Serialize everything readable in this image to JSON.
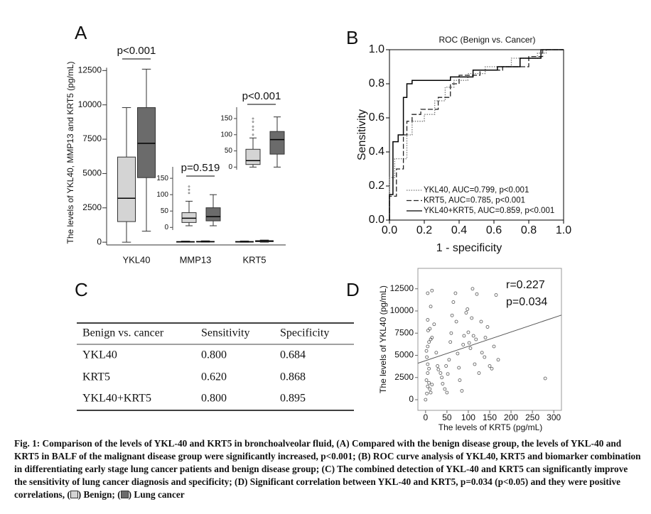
{
  "panels": [
    "A",
    "B",
    "C",
    "D"
  ],
  "chart_data": [
    {
      "type": "box",
      "ylabel": "The levels of YKL40, MMP13 and KRT5 (pg/mL)",
      "categories": [
        "YKL40",
        "MMP13",
        "KRT5"
      ],
      "ylim": [
        -200,
        13500
      ],
      "yticks": [
        0,
        2500,
        5000,
        7500,
        10000,
        12500
      ],
      "annotations": [
        "p<0.001",
        "p=0.519",
        "p<0.001"
      ],
      "series": [
        {
          "color": "#d4d4d4",
          "min": [
            0,
            5,
            0
          ],
          "q1": [
            1500,
            15,
            8
          ],
          "median": [
            3200,
            28,
            20
          ],
          "q3": [
            6200,
            45,
            55
          ],
          "max": [
            9800,
            80,
            90
          ],
          "outliers": [
            [],
            [
              105,
              115,
              125
            ],
            [
              100,
              115,
              125,
              140,
              150
            ]
          ]
        },
        {
          "color": "#6b6b6b",
          "min": [
            800,
            5,
            0
          ],
          "q1": [
            4700,
            20,
            40
          ],
          "median": [
            7200,
            33,
            85
          ],
          "q3": [
            9800,
            60,
            110
          ],
          "max": [
            12600,
            100,
            155
          ],
          "outliers": [
            [],
            [],
            []
          ]
        }
      ],
      "insets": [
        {
          "ylim": [
            -8,
            185
          ],
          "yticks": [
            0,
            50,
            100,
            150
          ]
        },
        {
          "ylim": [
            -8,
            185
          ],
          "yticks": [
            0,
            50,
            100,
            150
          ]
        }
      ]
    },
    {
      "type": "line",
      "title": "ROC (Benign vs. Cancer)",
      "xlabel": "1 - specificity",
      "ylabel": "Sensitivity",
      "xlim": [
        0,
        1
      ],
      "ylim": [
        0,
        1
      ],
      "xticks": [
        {
          "value": 0,
          "label": "0.0"
        },
        {
          "value": 0.2,
          "label": "0.2"
        },
        {
          "value": 0.4,
          "label": "0.4"
        },
        {
          "value": 0.6,
          "label": "0.6"
        },
        {
          "value": 0.8,
          "label": "0.8"
        },
        {
          "value": 1,
          "label": "1.0"
        }
      ],
      "yticks": [
        {
          "value": 0,
          "label": "0.0"
        },
        {
          "value": 0.2,
          "label": "0.2"
        },
        {
          "value": 0.4,
          "label": "0.4"
        },
        {
          "value": 0.6,
          "label": "0.6"
        },
        {
          "value": 0.8,
          "label": "0.8"
        },
        {
          "value": 1,
          "label": "1.0"
        }
      ],
      "legend": "lower right",
      "series": [
        {
          "name": "YKL40, AUC=0.799, p<0.001",
          "color": "#777777",
          "style": "dotted",
          "x": [
            0,
            0,
            0.03,
            0.03,
            0.1,
            0.1,
            0.13,
            0.13,
            0.2,
            0.2,
            0.26,
            0.26,
            0.32,
            0.32,
            0.37,
            0.37,
            0.45,
            0.45,
            0.55,
            0.55,
            0.7,
            0.7,
            0.85,
            0.85,
            0.9,
            0.9,
            1.0
          ],
          "y": [
            0,
            0.25,
            0.25,
            0.36,
            0.36,
            0.5,
            0.5,
            0.58,
            0.58,
            0.62,
            0.62,
            0.7,
            0.7,
            0.78,
            0.78,
            0.82,
            0.82,
            0.86,
            0.86,
            0.9,
            0.9,
            0.95,
            0.95,
            0.98,
            0.98,
            1.0,
            1.0
          ]
        },
        {
          "name": "KRT5, AUC=0.785, p<0.001",
          "color": "#222222",
          "style": "dashed",
          "x": [
            0,
            0,
            0.04,
            0.04,
            0.08,
            0.08,
            0.1,
            0.1,
            0.13,
            0.13,
            0.18,
            0.18,
            0.28,
            0.28,
            0.35,
            0.35,
            0.4,
            0.4,
            0.52,
            0.52,
            0.65,
            0.65,
            0.8,
            0.8,
            0.88,
            0.88,
            1.0
          ],
          "y": [
            0,
            0.14,
            0.14,
            0.3,
            0.3,
            0.5,
            0.5,
            0.58,
            0.58,
            0.62,
            0.62,
            0.65,
            0.65,
            0.72,
            0.72,
            0.8,
            0.8,
            0.85,
            0.85,
            0.88,
            0.88,
            0.9,
            0.9,
            0.96,
            0.96,
            1.0,
            1.0
          ]
        },
        {
          "name": "YKL40+KRT5, AUC=0.859, p<0.001",
          "color": "#000000",
          "style": "solid",
          "x": [
            0,
            0,
            0.02,
            0.02,
            0.05,
            0.05,
            0.08,
            0.08,
            0.1,
            0.1,
            0.13,
            0.13,
            0.35,
            0.35,
            0.48,
            0.48,
            0.62,
            0.62,
            0.75,
            0.75,
            0.87,
            0.87,
            1.0
          ],
          "y": [
            0,
            0.15,
            0.15,
            0.46,
            0.46,
            0.5,
            0.5,
            0.72,
            0.72,
            0.8,
            0.8,
            0.82,
            0.82,
            0.84,
            0.84,
            0.88,
            0.88,
            0.9,
            0.9,
            0.95,
            0.95,
            1.0,
            1.0
          ]
        }
      ]
    },
    {
      "type": "scatter",
      "xlabel": "The levels of KRT5 (pg/mL)",
      "ylabel": "The levels of YKL40 (pg/mL)",
      "annotations": [
        "r=0.227",
        "p=0.034"
      ],
      "xlim": [
        -18,
        318
      ],
      "ylim": [
        -1200,
        14800
      ],
      "xticks": [
        0,
        50,
        100,
        150,
        200,
        250,
        300
      ],
      "yticks": [
        0,
        2500,
        5000,
        7500,
        10000,
        12500
      ],
      "color": "#555555",
      "x": [
        0,
        3,
        5,
        8,
        2,
        10,
        12,
        15,
        5,
        8,
        5,
        3,
        2,
        5,
        8,
        12,
        15,
        6,
        10,
        5,
        12,
        5,
        15,
        20,
        25,
        28,
        30,
        35,
        38,
        40,
        45,
        50,
        48,
        52,
        55,
        58,
        60,
        62,
        65,
        70,
        72,
        75,
        78,
        80,
        85,
        88,
        90,
        95,
        98,
        100,
        102,
        105,
        108,
        110,
        112,
        115,
        118,
        120,
        125,
        130,
        132,
        138,
        140,
        145,
        150,
        155,
        160,
        165,
        170,
        280
      ],
      "y": [
        0,
        700,
        1500,
        1900,
        2200,
        1200,
        800,
        1700,
        3000,
        3500,
        4000,
        4800,
        5500,
        6000,
        6500,
        6800,
        7000,
        7800,
        8000,
        9000,
        10500,
        12000,
        12300,
        8500,
        5300,
        3800,
        3400,
        3000,
        2500,
        1800,
        1200,
        800,
        3800,
        2900,
        4500,
        6500,
        7500,
        9500,
        11000,
        12000,
        8800,
        5200,
        3600,
        2200,
        1000,
        6200,
        7200,
        9800,
        10200,
        7600,
        6400,
        5800,
        9200,
        12500,
        7200,
        4000,
        6800,
        11900,
        3000,
        8800,
        5300,
        4800,
        7000,
        8200,
        3800,
        3500,
        6000,
        11800,
        4500,
        2400
      ],
      "fit_line": {
        "x": [
          -18,
          318
        ],
        "y": [
          4110,
          9535
        ]
      }
    }
  ],
  "table": {
    "header": [
      "Benign vs. cancer",
      "Sensitivity",
      "Specificity"
    ],
    "rows": [
      [
        "YKL40",
        "0.800",
        "0.684"
      ],
      [
        "KRT5",
        "0.620",
        "0.868"
      ],
      [
        "YKL40+KRT5",
        "0.800",
        "0.895"
      ]
    ]
  },
  "caption": {
    "parts": [
      "Fig. 1: Comparison of the levels of YKL-40 and KRT5 in bronchoalveolar fluid, (A) Compared with the benign disease group, the levels of YKL-40 and KRT5 in BALF of the malignant disease group were significantly increased, p<0.001; (B) ROC curve analysis of YKL40, KRT5 and biomarker combination in differentiating early stage lung cancer patients and benign disease group; (C) The combined detection of YKL-40 and KRT5 can significantly improve the sensitivity of lung cancer diagnosis and specificity; (D) Significant correlation between YKL-40 and KRT5, p=0.034 (p<0.05) and they were positive correlations, (",
      ") Benign; (",
      ") Lung cancer"
    ]
  }
}
